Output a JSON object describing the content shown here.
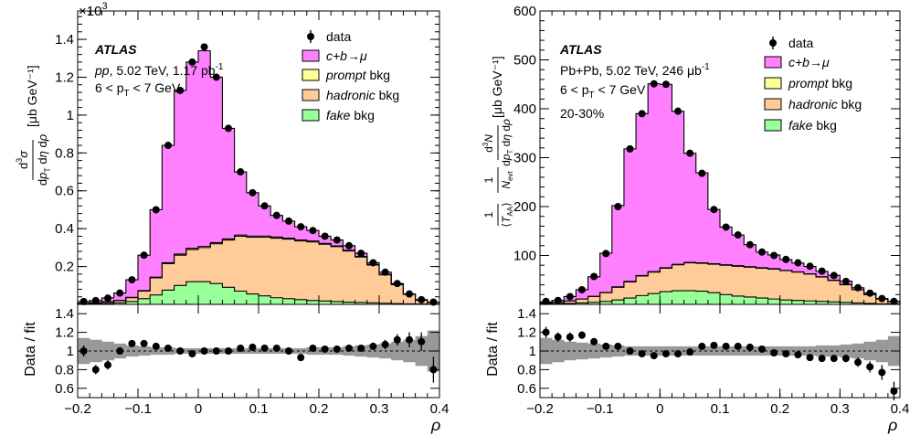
{
  "chart_data": [
    {
      "type": "bar",
      "panel": "left",
      "stacked": true,
      "main": {
        "yunit_label": "×10",
        "yunit_exp": "3",
        "ytitle_unit": "[μb GeV⁻¹]",
        "ylim": [
          0,
          1.55
        ],
        "yticks": [
          0.2,
          0.4,
          0.6,
          0.8,
          1,
          1.2,
          1.4
        ],
        "yticklabels": [
          "0.2",
          "0.4",
          "0.6",
          "0.8",
          "1",
          "1.2",
          "1.4"
        ],
        "atlas": "ATLAS",
        "info_lines": [
          {
            "a": "pp",
            "b": ", 5.02 TeV, 1.17 pb",
            "sup": "-1"
          },
          {
            "a": "6 < p",
            "sub": "T",
            "b": " < 7 GeV"
          }
        ],
        "legend": [
          {
            "label": "data",
            "color": "#000000"
          },
          {
            "label": "c+b→μ",
            "color": "#ff80ff"
          },
          {
            "label": "prompt bkg",
            "color": "#ffff99"
          },
          {
            "label": "hadronic bkg",
            "color": "#ffcc99"
          },
          {
            "label": "fake bkg",
            "color": "#99ff99"
          }
        ],
        "x_edges": [
          -0.2,
          -0.18,
          -0.16,
          -0.14,
          -0.12,
          -0.1,
          -0.08,
          -0.06,
          -0.04,
          -0.02,
          0,
          0.02,
          0.04,
          0.06,
          0.08,
          0.1,
          0.12,
          0.14,
          0.16,
          0.18,
          0.2,
          0.22,
          0.24,
          0.26,
          0.28,
          0.3,
          0.32,
          0.34,
          0.36,
          0.38,
          0.4
        ],
        "series": [
          {
            "name": "fake bkg",
            "color": "#99ff99",
            "values": [
              0.002,
              0.003,
              0.005,
              0.008,
              0.015,
              0.03,
              0.05,
              0.075,
              0.1,
              0.12,
              0.12,
              0.11,
              0.09,
              0.07,
              0.055,
              0.045,
              0.035,
              0.03,
              0.025,
              0.02,
              0.018,
              0.015,
              0.012,
              0.01,
              0.008,
              0.006,
              0.004,
              0.003,
              0.002,
              0.001
            ]
          },
          {
            "name": "hadronic bkg",
            "color": "#ffcc99",
            "values": [
              0.003,
              0.005,
              0.008,
              0.012,
              0.02,
              0.04,
              0.09,
              0.14,
              0.16,
              0.17,
              0.18,
              0.21,
              0.25,
              0.29,
              0.3,
              0.31,
              0.315,
              0.315,
              0.31,
              0.31,
              0.3,
              0.29,
              0.27,
              0.24,
              0.2,
              0.15,
              0.1,
              0.05,
              0.02,
              0.01
            ]
          },
          {
            "name": "prompt bkg",
            "color": "#ffff99",
            "values": [
              0,
              0,
              0.001,
              0.001,
              0.002,
              0.003,
              0.004,
              0.005,
              0.006,
              0.006,
              0.006,
              0.006,
              0.006,
              0.006,
              0.006,
              0.006,
              0.006,
              0.005,
              0.005,
              0.005,
              0.004,
              0.004,
              0.004,
              0.003,
              0.003,
              0.002,
              0.002,
              0.001,
              0.001,
              0
            ]
          },
          {
            "name": "c+b→μ",
            "color": "#ff80ff",
            "values": [
              0.01,
              0.012,
              0.02,
              0.039,
              0.093,
              0.187,
              0.356,
              0.62,
              0.864,
              0.984,
              1.034,
              0.874,
              0.584,
              0.334,
              0.229,
              0.159,
              0.114,
              0.09,
              0.07,
              0.055,
              0.038,
              0.031,
              0.024,
              0.017,
              0.009,
              0.012,
              0.004,
              0.001,
              0.002,
              0.001
            ]
          }
        ],
        "data_points": {
          "x": [
            -0.19,
            -0.17,
            -0.15,
            -0.13,
            -0.11,
            -0.09,
            -0.07,
            -0.05,
            -0.03,
            -0.01,
            0.01,
            0.03,
            0.05,
            0.07,
            0.09,
            0.11,
            0.13,
            0.15,
            0.17,
            0.19,
            0.21,
            0.23,
            0.25,
            0.27,
            0.29,
            0.31,
            0.33,
            0.35,
            0.37,
            0.39
          ],
          "y": [
            0.015,
            0.02,
            0.033,
            0.06,
            0.13,
            0.26,
            0.5,
            0.84,
            1.13,
            1.28,
            1.36,
            1.2,
            0.93,
            0.7,
            0.59,
            0.52,
            0.47,
            0.44,
            0.41,
            0.39,
            0.36,
            0.34,
            0.31,
            0.27,
            0.22,
            0.17,
            0.11,
            0.055,
            0.025,
            0.012
          ],
          "yerr": [
            0.004,
            0.004,
            0.005,
            0.006,
            0.008,
            0.01,
            0.012,
            0.014,
            0.016,
            0.017,
            0.018,
            0.017,
            0.015,
            0.013,
            0.012,
            0.011,
            0.011,
            0.01,
            0.01,
            0.01,
            0.009,
            0.009,
            0.009,
            0.008,
            0.008,
            0.007,
            0.006,
            0.005,
            0.004,
            0.004
          ]
        }
      },
      "ratio": {
        "ytitle": "Data / fit",
        "ylim": [
          0.5,
          1.5
        ],
        "yticks": [
          0.6,
          0.8,
          1,
          1.2,
          1.4
        ],
        "yticklabels": [
          "0.6",
          "0.8",
          "1",
          "1.2",
          "1.4"
        ],
        "band_halfwidth": [
          0.14,
          0.12,
          0.1,
          0.08,
          0.06,
          0.05,
          0.04,
          0.04,
          0.03,
          0.03,
          0.03,
          0.03,
          0.03,
          0.03,
          0.03,
          0.03,
          0.03,
          0.03,
          0.03,
          0.04,
          0.04,
          0.04,
          0.05,
          0.06,
          0.07,
          0.08,
          0.1,
          0.12,
          0.16,
          0.22
        ],
        "values": [
          1.0,
          0.8,
          0.85,
          1.0,
          1.08,
          1.08,
          1.05,
          1.03,
          1.0,
          0.97,
          1.0,
          1.0,
          1.0,
          1.03,
          1.04,
          1.03,
          1.03,
          1.0,
          0.93,
          1.03,
          1.02,
          1.02,
          1.03,
          1.03,
          1.05,
          1.07,
          1.12,
          1.12,
          1.1,
          0.8
        ],
        "errors": [
          0.06,
          0.05,
          0.05,
          0.04,
          0.03,
          0.02,
          0.02,
          0.02,
          0.01,
          0.01,
          0.01,
          0.01,
          0.01,
          0.01,
          0.01,
          0.02,
          0.02,
          0.02,
          0.02,
          0.02,
          0.02,
          0.02,
          0.03,
          0.03,
          0.04,
          0.05,
          0.06,
          0.08,
          0.1,
          0.14
        ]
      },
      "x": {
        "lim": [
          -0.2,
          0.4
        ],
        "ticks": [
          -0.2,
          -0.1,
          0,
          0.1,
          0.2,
          0.3,
          0.4
        ],
        "ticklabels": [
          "−0.2",
          "−0.1",
          "0",
          "0.1",
          "0.2",
          "0.3",
          "0.4"
        ],
        "title": "ρ"
      }
    },
    {
      "type": "bar",
      "panel": "right",
      "stacked": true,
      "main": {
        "ytitle_unit": "[μb GeV⁻¹]",
        "ylim": [
          0,
          600
        ],
        "yticks": [
          100,
          200,
          300,
          400,
          500,
          600
        ],
        "yticklabels": [
          "100",
          "200",
          "300",
          "400",
          "500",
          "600"
        ],
        "atlas": "ATLAS",
        "info_lines": [
          {
            "a": "Pb+Pb, 5.02 TeV, 246 μb",
            "sup": "-1"
          },
          {
            "a": "6 < p",
            "sub": "T",
            "b": " < 7 GeV"
          },
          {
            "a": "20-30%"
          }
        ],
        "legend": [
          {
            "label": "data",
            "color": "#000000"
          },
          {
            "label": "c+b→μ",
            "color": "#ff80ff"
          },
          {
            "label": "prompt bkg",
            "color": "#ffff99"
          },
          {
            "label": "hadronic bkg",
            "color": "#ffcc99"
          },
          {
            "label": "fake bkg",
            "color": "#99ff99"
          }
        ],
        "x_edges": [
          -0.2,
          -0.18,
          -0.16,
          -0.14,
          -0.12,
          -0.1,
          -0.08,
          -0.06,
          -0.04,
          -0.02,
          0,
          0.02,
          0.04,
          0.06,
          0.08,
          0.1,
          0.12,
          0.14,
          0.16,
          0.18,
          0.2,
          0.22,
          0.24,
          0.26,
          0.28,
          0.3,
          0.32,
          0.34,
          0.36,
          0.38,
          0.4
        ],
        "series": [
          {
            "name": "fake bkg",
            "color": "#99ff99",
            "values": [
              1,
              1,
              2,
              3,
              4,
              6,
              9,
              13,
              18,
              22,
              26,
              28,
              28,
              27,
              24,
              20,
              17,
              15,
              13,
              11,
              9,
              8,
              7,
              6,
              5,
              4,
              3,
              2,
              1,
              1
            ]
          },
          {
            "name": "hadronic bkg",
            "color": "#ffcc99",
            "values": [
              2,
              3,
              5,
              8,
              12,
              18,
              26,
              33,
              40,
              44,
              48,
              53,
              57,
              57,
              58,
              60,
              61,
              61,
              61,
              61,
              60,
              58,
              55,
              50,
              44,
              36,
              27,
              18,
              10,
              5
            ]
          },
          {
            "name": "prompt bkg",
            "color": "#ffff99",
            "values": [
              0,
              0,
              0,
              0,
              0.5,
              0.5,
              1,
              1,
              1,
              1,
              1,
              1,
              1,
              1,
              1,
              1,
              1,
              1,
              1,
              1,
              0.5,
              0.5,
              0.5,
              0.5,
              0.5,
              0.5,
              0,
              0,
              0,
              0
            ]
          },
          {
            "name": "c+b→μ",
            "color": "#ff80ff",
            "values": [
              2,
              4,
              9,
              19,
              40,
              80,
              166,
              271,
              331,
              384,
              375,
              313,
              223,
              184,
              111,
              77,
              63,
              45,
              32,
              28,
              22,
              18,
              15,
              11,
              10,
              7,
              4,
              3,
              1,
              0
            ]
          }
        ],
        "data_points": {
          "x": [
            -0.19,
            -0.17,
            -0.15,
            -0.13,
            -0.11,
            -0.09,
            -0.07,
            -0.05,
            -0.03,
            -0.01,
            0.01,
            0.03,
            0.05,
            0.07,
            0.09,
            0.11,
            0.13,
            0.15,
            0.17,
            0.19,
            0.21,
            0.23,
            0.25,
            0.27,
            0.29,
            0.31,
            0.33,
            0.35,
            0.37,
            0.39
          ],
          "y": [
            6,
            8,
            16,
            30,
            57,
            104,
            200,
            318,
            390,
            451,
            450,
            395,
            309,
            268,
            194,
            158,
            142,
            122,
            107,
            100,
            92,
            85,
            78,
            68,
            59,
            47,
            34,
            23,
            12,
            6
          ],
          "yerr": [
            1,
            1,
            2,
            2,
            3,
            4,
            5,
            6,
            7,
            7,
            7,
            7,
            6,
            6,
            5,
            5,
            4,
            4,
            4,
            4,
            4,
            4,
            3,
            3,
            3,
            3,
            3,
            2,
            2,
            1
          ]
        }
      },
      "ratio": {
        "ytitle": "Data / fit",
        "ylim": [
          0.5,
          1.5
        ],
        "yticks": [
          0.6,
          0.8,
          1,
          1.2,
          1.4
        ],
        "yticklabels": [
          "0.6",
          "0.8",
          "1",
          "1.2",
          "1.4"
        ],
        "band_halfwidth": [
          0.14,
          0.12,
          0.1,
          0.09,
          0.08,
          0.07,
          0.06,
          0.05,
          0.05,
          0.05,
          0.05,
          0.05,
          0.05,
          0.05,
          0.05,
          0.05,
          0.05,
          0.05,
          0.05,
          0.05,
          0.05,
          0.05,
          0.05,
          0.06,
          0.06,
          0.07,
          0.08,
          0.1,
          0.12,
          0.16
        ],
        "values": [
          1.2,
          1.15,
          1.15,
          1.17,
          1.1,
          1.05,
          1.05,
          1.0,
          0.97,
          0.95,
          0.97,
          0.97,
          0.99,
          1.05,
          1.06,
          1.05,
          1.05,
          1.04,
          1.02,
          0.98,
          0.97,
          0.96,
          0.93,
          0.92,
          0.92,
          0.92,
          0.88,
          0.83,
          0.77,
          0.57
        ],
        "errors": [
          0.06,
          0.05,
          0.05,
          0.04,
          0.03,
          0.02,
          0.02,
          0.01,
          0.01,
          0.01,
          0.01,
          0.01,
          0.01,
          0.01,
          0.01,
          0.02,
          0.02,
          0.02,
          0.02,
          0.02,
          0.02,
          0.02,
          0.02,
          0.03,
          0.03,
          0.04,
          0.05,
          0.06,
          0.08,
          0.1
        ]
      },
      "x": {
        "lim": [
          -0.2,
          0.4
        ],
        "ticks": [
          -0.2,
          -0.1,
          0,
          0.1,
          0.2,
          0.3,
          0.4
        ],
        "ticklabels": [
          "−0.2",
          "−0.1",
          "0",
          "0.1",
          "0.2",
          "0.3",
          "0.4"
        ],
        "title": "ρ"
      }
    }
  ]
}
